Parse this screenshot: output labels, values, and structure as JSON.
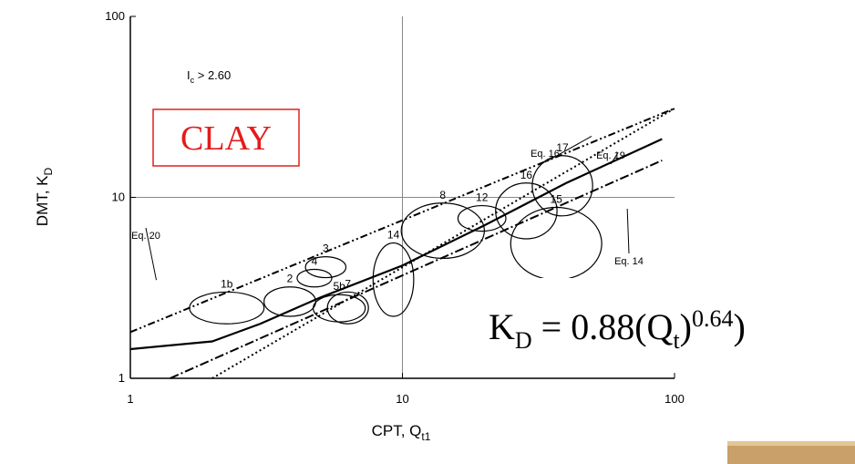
{
  "chart_data": {
    "type": "line",
    "x_label": {
      "main": "CPT, Q",
      "sub": "t1"
    },
    "y_label": {
      "main": "DMT, K",
      "sub": "D"
    },
    "xlim": [
      1,
      100
    ],
    "ylim": [
      1,
      100
    ],
    "xticks": [
      1,
      10,
      100
    ],
    "yticks": [
      1,
      10,
      100
    ],
    "log_x": true,
    "log_y": true,
    "grid_at": [
      10
    ],
    "series": [
      {
        "name": "Eq. 20",
        "color": "#000000",
        "style": "dashdot2",
        "x": [
          1,
          100
        ],
        "values": [
          1.8,
          31
        ]
      },
      {
        "name": "Eq. 16",
        "color": "#000000",
        "style": "dotted",
        "x": [
          2,
          100
        ],
        "values": [
          1,
          31
        ]
      },
      {
        "name": "Eq. 19",
        "color": "#000000",
        "style": "solid",
        "x": [
          1,
          2,
          3,
          5,
          10,
          20,
          40,
          90
        ],
        "values": [
          1.45,
          1.6,
          2,
          2.8,
          4.2,
          7,
          12,
          21
        ]
      },
      {
        "name": "Eq. 14",
        "color": "#000000",
        "style": "dashdot",
        "x": [
          1.4,
          90
        ],
        "values": [
          1,
          16
        ]
      }
    ],
    "regions": [
      {
        "label": "1b",
        "x": [
          1.65,
          3.1
        ],
        "y": [
          2,
          3
        ]
      },
      {
        "label": "2",
        "x": [
          3.1,
          4.8
        ],
        "y": [
          2.2,
          3.2
        ]
      },
      {
        "label": "3",
        "x": [
          4.4,
          6.2
        ],
        "y": [
          3.6,
          4.7
        ]
      },
      {
        "label": "4",
        "x": [
          4.1,
          5.5
        ],
        "y": [
          3.2,
          4
        ]
      },
      {
        "label": "5b",
        "x": [
          4.7,
          7.3
        ],
        "y": [
          2.05,
          2.9
        ]
      },
      {
        "label": "7",
        "x": [
          5.3,
          7.5
        ],
        "y": [
          2,
          3
        ]
      },
      {
        "label": "14",
        "x": [
          7.8,
          11
        ],
        "y": [
          2.2,
          5.6
        ]
      },
      {
        "label": "8",
        "x": [
          9.9,
          20
        ],
        "y": [
          4.6,
          9.3
        ]
      },
      {
        "label": "12",
        "x": [
          16,
          24
        ],
        "y": [
          6.5,
          9
        ]
      },
      {
        "label": "16",
        "x": [
          22,
          37
        ],
        "y": [
          5.9,
          12
        ]
      },
      {
        "label": "17",
        "x": [
          30,
          50
        ],
        "y": [
          7.9,
          17
        ]
      },
      {
        "label": "15",
        "x": [
          25,
          54
        ],
        "y": [
          3.5,
          8.8
        ]
      }
    ],
    "annotations": {
      "ic": {
        "main": "I",
        "sub": "c",
        "rest": " > 2.60"
      },
      "clay": "CLAY",
      "formula": {
        "k": "K",
        "d": "D",
        "a": " = 0.88(Q",
        "t": "t",
        "b": ")",
        "exp": "0.64",
        "c": ")"
      }
    }
  }
}
